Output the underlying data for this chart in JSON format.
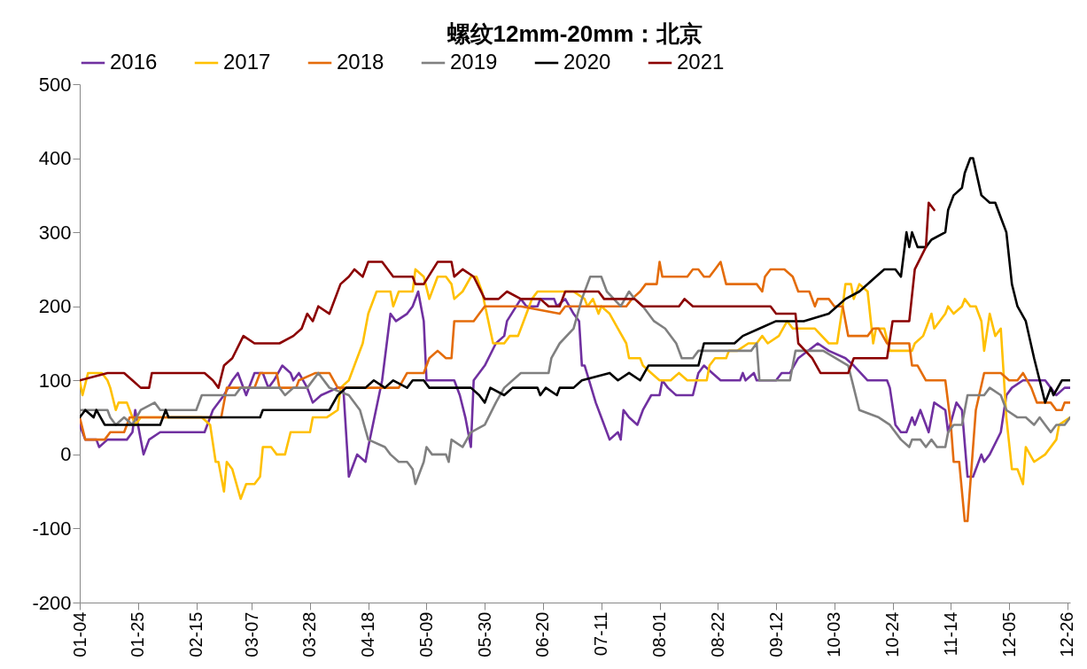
{
  "chart_data": {
    "type": "line",
    "title": "螺纹12mm-20mm：北京",
    "legend": "top",
    "ylim": [
      -200,
      500
    ],
    "yticks": [
      -200,
      -100,
      0,
      100,
      200,
      300,
      400,
      500
    ],
    "xlim": [
      "--01-04",
      "--12-27"
    ],
    "xticks": [
      {
        "value": "--01-04",
        "label": "01-04"
      },
      {
        "value": "--01-25",
        "label": "01-25"
      },
      {
        "value": "--02-15",
        "label": "02-15"
      },
      {
        "value": "--03-07",
        "label": "03-07"
      },
      {
        "value": "--03-28",
        "label": "03-28"
      },
      {
        "value": "--04-18",
        "label": "04-18"
      },
      {
        "value": "--05-09",
        "label": "05-09"
      },
      {
        "value": "--05-30",
        "label": "05-30"
      },
      {
        "value": "--06-20",
        "label": "06-20"
      },
      {
        "value": "--07-11",
        "label": "07-11"
      },
      {
        "value": "--08-01",
        "label": "08-01"
      },
      {
        "value": "--08-22",
        "label": "08-22"
      },
      {
        "value": "--09-12",
        "label": "09-12"
      },
      {
        "value": "--10-03",
        "label": "10-03"
      },
      {
        "value": "--10-24",
        "label": "10-24"
      },
      {
        "value": "--11-14",
        "label": "11-14"
      },
      {
        "value": "--12-05",
        "label": "12-05"
      },
      {
        "value": "--12-26",
        "label": "12-26"
      }
    ],
    "line_style": "solid",
    "marker": "none",
    "series": [
      {
        "name": "2016",
        "color": "#7030a0",
        "x": [
          "--01-04",
          "--01-06",
          "--01-10",
          "--01-11",
          "--01-14",
          "--01-21",
          "--01-23",
          "--01-24",
          "--01-26",
          "--01-27",
          "--01-29",
          "--02-02",
          "--02-18",
          "--02-21",
          "--02-25",
          "--02-28",
          "--03-02",
          "--03-05",
          "--03-08",
          "--03-11",
          "--03-13",
          "--03-15",
          "--03-18",
          "--03-21",
          "--03-22",
          "--03-24",
          "--03-27",
          "--03-29",
          "--04-01",
          "--04-07",
          "--04-09",
          "--04-11",
          "--04-13",
          "--04-14",
          "--04-17",
          "--04-18",
          "--04-23",
          "--04-26",
          "--04-28",
          "--05-02",
          "--05-04",
          "--05-06",
          "--05-08",
          "--05-09",
          "--05-19",
          "--05-21",
          "--05-23",
          "--05-25",
          "--05-26",
          "--05-30",
          "--06-03",
          "--06-06",
          "--06-07",
          "--06-12",
          "--06-14",
          "--06-18",
          "--06-19",
          "--06-24",
          "--06-25",
          "--06-28",
          "--07-01",
          "--07-03",
          "--07-04",
          "--07-05",
          "--07-09",
          "--07-11",
          "--07-14",
          "--07-17",
          "--07-18",
          "--07-19",
          "--07-21",
          "--07-24",
          "--07-26",
          "--07-29",
          "--08-01",
          "--08-02",
          "--08-04",
          "--08-07",
          "--08-13",
          "--08-15",
          "--08-17",
          "--08-20",
          "--08-23",
          "--08-30",
          "--08-31",
          "--09-01",
          "--09-04",
          "--09-05",
          "--09-12",
          "--09-14",
          "--09-17",
          "--09-20",
          "--09-27",
          "--10-01",
          "--10-07",
          "--10-10",
          "--10-15",
          "--10-22",
          "--10-23",
          "--10-25",
          "--10-27",
          "--10-29",
          "--10-31",
          "--11-01",
          "--11-03",
          "--11-06",
          "--11-08",
          "--11-12",
          "--11-13",
          "--11-16",
          "--11-18",
          "--11-20",
          "--11-22",
          "--11-25",
          "--11-26",
          "--11-28",
          "--12-02",
          "--12-04",
          "--12-06",
          "--12-10",
          "--12-18",
          "--12-20",
          "--12-22",
          "--12-25",
          "--12-27"
        ],
        "values": [
          40,
          20,
          20,
          10,
          20,
          20,
          30,
          60,
          20,
          0,
          20,
          30,
          30,
          60,
          80,
          100,
          110,
          80,
          110,
          110,
          90,
          100,
          120,
          110,
          100,
          110,
          90,
          70,
          80,
          90,
          90,
          -30,
          -10,
          0,
          -10,
          10,
          100,
          190,
          180,
          190,
          200,
          220,
          180,
          100,
          100,
          80,
          50,
          10,
          100,
          120,
          150,
          160,
          180,
          210,
          200,
          200,
          210,
          210,
          200,
          210,
          190,
          180,
          120,
          120,
          70,
          50,
          20,
          30,
          20,
          60,
          50,
          40,
          60,
          80,
          80,
          100,
          90,
          80,
          80,
          110,
          120,
          110,
          100,
          100,
          110,
          100,
          110,
          100,
          100,
          110,
          110,
          130,
          150,
          140,
          130,
          120,
          100,
          100,
          90,
          40,
          30,
          30,
          50,
          40,
          60,
          30,
          70,
          60,
          30,
          70,
          60,
          -30,
          -30,
          0,
          -10,
          0,
          30,
          80,
          90,
          100,
          100,
          90,
          80,
          90,
          90
        ]
      },
      {
        "name": "2017",
        "color": "#ffc000",
        "x": [
          "--01-04",
          "--01-05",
          "--01-07",
          "--01-12",
          "--01-14",
          "--01-15",
          "--01-17",
          "--01-18",
          "--01-21",
          "--01-23",
          "--01-24",
          "--01-26",
          "--02-17",
          "--02-20",
          "--02-22",
          "--02-23",
          "--02-25",
          "--02-26",
          "--02-28",
          "--03-03",
          "--03-05",
          "--03-08",
          "--03-10",
          "--03-11",
          "--03-14",
          "--03-16",
          "--03-19",
          "--03-21",
          "--03-28",
          "--03-29",
          "--04-03",
          "--04-07",
          "--04-08",
          "--04-11",
          "--04-13",
          "--04-16",
          "--04-18",
          "--04-21",
          "--04-26",
          "--04-27",
          "--04-29",
          "--05-04",
          "--05-05",
          "--05-08",
          "--05-10",
          "--05-13",
          "--05-16",
          "--05-18",
          "--05-19",
          "--05-22",
          "--05-25",
          "--05-27",
          "--05-29",
          "--06-02",
          "--06-06",
          "--06-08",
          "--06-11",
          "--06-13",
          "--06-15",
          "--06-16",
          "--06-18",
          "--07-01",
          "--07-05",
          "--07-06",
          "--07-08",
          "--07-10",
          "--07-11",
          "--07-14",
          "--07-17",
          "--07-20",
          "--07-21",
          "--07-25",
          "--07-26",
          "--07-29",
          "--08-01",
          "--08-05",
          "--08-08",
          "--08-11",
          "--08-18",
          "--08-19",
          "--08-21",
          "--08-25",
          "--08-26",
          "--08-29",
          "--09-02",
          "--09-05",
          "--09-07",
          "--09-09",
          "--09-13",
          "--09-16",
          "--09-18",
          "--09-26",
          "--10-01",
          "--10-04",
          "--10-06",
          "--10-07",
          "--10-09",
          "--10-10",
          "--10-12",
          "--10-15",
          "--10-17",
          "--10-18",
          "--10-21",
          "--10-23",
          "--10-31",
          "--11-01",
          "--11-04",
          "--11-06",
          "--11-07",
          "--11-08",
          "--11-12",
          "--11-13",
          "--11-15",
          "--11-18",
          "--11-19",
          "--11-21",
          "--11-23",
          "--11-25",
          "--11-26",
          "--11-28",
          "--11-30",
          "--12-02",
          "--12-04",
          "--12-06",
          "--12-08",
          "--12-10",
          "--12-11",
          "--12-14",
          "--12-18",
          "--12-22",
          "--12-23",
          "--12-27"
        ],
        "values": [
          100,
          80,
          110,
          110,
          100,
          90,
          60,
          70,
          70,
          50,
          40,
          50,
          50,
          40,
          -10,
          -10,
          -50,
          -10,
          -20,
          -60,
          -40,
          -40,
          -30,
          10,
          10,
          0,
          0,
          30,
          30,
          50,
          50,
          60,
          90,
          100,
          120,
          150,
          190,
          220,
          220,
          200,
          220,
          220,
          250,
          240,
          210,
          240,
          240,
          230,
          210,
          220,
          240,
          240,
          220,
          150,
          150,
          160,
          160,
          180,
          200,
          210,
          220,
          220,
          210,
          200,
          210,
          190,
          200,
          190,
          170,
          150,
          130,
          130,
          120,
          110,
          100,
          100,
          110,
          100,
          100,
          120,
          130,
          130,
          140,
          140,
          150,
          150,
          160,
          150,
          160,
          180,
          170,
          170,
          150,
          150,
          200,
          230,
          230,
          210,
          230,
          220,
          150,
          170,
          170,
          140,
          140,
          150,
          160,
          180,
          190,
          170,
          190,
          200,
          190,
          200,
          210,
          200,
          200,
          180,
          140,
          190,
          160,
          170,
          50,
          -20,
          -20,
          -40,
          10,
          -10,
          0,
          20,
          40,
          50
        ]
      },
      {
        "name": "2018",
        "color": "#e46c0a",
        "x": [
          "--01-04",
          "--01-06",
          "--01-13",
          "--01-15",
          "--01-20",
          "--01-22",
          "--02-24",
          "--02-26",
          "--03-08",
          "--03-10",
          "--03-16",
          "--03-17",
          "--03-23",
          "--03-24",
          "--03-30",
          "--04-04",
          "--04-07",
          "--04-29",
          "--05-02",
          "--05-08",
          "--05-10",
          "--05-13",
          "--05-16",
          "--05-18",
          "--05-19",
          "--05-26",
          "--05-28",
          "--05-30",
          "--06-12",
          "--06-26",
          "--06-28",
          "--07-20",
          "--07-22",
          "--07-25",
          "--07-27",
          "--07-31",
          "--08-01",
          "--08-02",
          "--08-11",
          "--08-13",
          "--08-15",
          "--08-17",
          "--08-19",
          "--08-21",
          "--08-23",
          "--08-25",
          "--09-05",
          "--09-07",
          "--09-08",
          "--09-10",
          "--09-15",
          "--09-18",
          "--09-20",
          "--09-24",
          "--09-26",
          "--09-27",
          "--10-01",
          "--10-03",
          "--10-06",
          "--10-08",
          "--10-15",
          "--10-17",
          "--10-19",
          "--10-22",
          "--10-30",
          "--10-31",
          "--11-02",
          "--11-05",
          "--11-12",
          "--11-14",
          "--11-15",
          "--11-17",
          "--11-19",
          "--11-20",
          "--11-23",
          "--11-26",
          "--12-02",
          "--12-05",
          "--12-08",
          "--12-10",
          "--12-13",
          "--12-15",
          "--12-20",
          "--12-22",
          "--12-24",
          "--12-25",
          "--12-27"
        ],
        "values": [
          50,
          20,
          20,
          30,
          30,
          50,
          50,
          90,
          90,
          110,
          110,
          90,
          90,
          100,
          110,
          110,
          90,
          90,
          110,
          110,
          130,
          140,
          130,
          130,
          180,
          180,
          190,
          200,
          200,
          190,
          200,
          200,
          210,
          220,
          230,
          230,
          260,
          240,
          240,
          250,
          250,
          240,
          240,
          250,
          260,
          230,
          230,
          220,
          240,
          250,
          250,
          240,
          220,
          220,
          200,
          210,
          210,
          200,
          200,
          160,
          160,
          170,
          170,
          150,
          150,
          120,
          120,
          100,
          100,
          40,
          -10,
          -10,
          -90,
          -90,
          60,
          110,
          110,
          100,
          100,
          110,
          90,
          70,
          70,
          60,
          60,
          70,
          70
        ]
      },
      {
        "name": "2019",
        "color": "#808080",
        "x": [
          "--01-04",
          "--01-14",
          "--01-15",
          "--01-17",
          "--01-20",
          "--01-23",
          "--01-26",
          "--01-31",
          "--02-02",
          "--02-15",
          "--02-17",
          "--03-01",
          "--03-03",
          "--03-17",
          "--03-19",
          "--03-22",
          "--03-27",
          "--03-31",
          "--04-04",
          "--04-11",
          "--04-15",
          "--04-18",
          "--04-24",
          "--04-26",
          "--04-29",
          "--05-02",
          "--05-04",
          "--05-05",
          "--05-08",
          "--05-09",
          "--05-11",
          "--05-16",
          "--05-17",
          "--05-18",
          "--05-22",
          "--05-25",
          "--05-30",
          "--06-03",
          "--06-06",
          "--06-12",
          "--06-22",
          "--06-23",
          "--06-26",
          "--07-01",
          "--07-04",
          "--07-07",
          "--07-11",
          "--07-13",
          "--07-18",
          "--07-21",
          "--07-23",
          "--07-26",
          "--07-30",
          "--08-03",
          "--08-07",
          "--08-09",
          "--08-13",
          "--08-15",
          "--09-03",
          "--09-05",
          "--09-06",
          "--09-17",
          "--09-19",
          "--09-29",
          "--10-08",
          "--10-10",
          "--10-12",
          "--10-19",
          "--10-23",
          "--10-27",
          "--10-30",
          "--10-31",
          "--11-03",
          "--11-05",
          "--11-07",
          "--11-09",
          "--11-12",
          "--11-13",
          "--11-15",
          "--11-18",
          "--11-20",
          "--11-26",
          "--11-28",
          "--12-02",
          "--12-04",
          "--12-08",
          "--12-11",
          "--12-14",
          "--12-16",
          "--12-18",
          "--12-20",
          "--12-22",
          "--12-25",
          "--12-27"
        ],
        "values": [
          60,
          60,
          50,
          40,
          50,
          40,
          60,
          70,
          60,
          60,
          80,
          80,
          90,
          90,
          80,
          90,
          90,
          110,
          90,
          80,
          60,
          20,
          10,
          0,
          -10,
          -10,
          -20,
          -40,
          -10,
          10,
          0,
          0,
          -10,
          20,
          10,
          30,
          40,
          70,
          90,
          110,
          110,
          130,
          150,
          170,
          210,
          240,
          240,
          220,
          200,
          220,
          210,
          200,
          180,
          170,
          150,
          130,
          130,
          140,
          140,
          150,
          100,
          100,
          140,
          140,
          120,
          90,
          60,
          50,
          40,
          20,
          10,
          20,
          20,
          10,
          20,
          10,
          10,
          30,
          40,
          40,
          80,
          80,
          90,
          80,
          60,
          50,
          50,
          40,
          50,
          40,
          30,
          40,
          40,
          50
        ]
      },
      {
        "name": "2020",
        "color": "#000000",
        "x": [
          "--01-04",
          "--01-06",
          "--01-09",
          "--01-10",
          "--01-13",
          "--02-02",
          "--02-04",
          "--02-05",
          "--03-10",
          "--03-11",
          "--04-04",
          "--04-07",
          "--04-10",
          "--04-17",
          "--04-20",
          "--04-24",
          "--04-27",
          "--05-02",
          "--05-04",
          "--05-08",
          "--05-10",
          "--05-25",
          "--05-28",
          "--05-30",
          "--06-01",
          "--06-06",
          "--06-09",
          "--06-18",
          "--06-19",
          "--06-21",
          "--06-25",
          "--06-26",
          "--07-01",
          "--07-04",
          "--07-14",
          "--07-17",
          "--07-21",
          "--07-25",
          "--07-28",
          "--08-15",
          "--08-17",
          "--08-28",
          "--08-31",
          "--09-06",
          "--09-12",
          "--09-22",
          "--10-01",
          "--10-07",
          "--10-12",
          "--10-18",
          "--10-21",
          "--10-25",
          "--10-27",
          "--10-29",
          "--10-30",
          "--10-31",
          "--11-02",
          "--11-05",
          "--11-07",
          "--11-12",
          "--11-13",
          "--11-15",
          "--11-18",
          "--11-19",
          "--11-21",
          "--11-22",
          "--11-25",
          "--11-28",
          "--11-30",
          "--12-02",
          "--12-04",
          "--12-06",
          "--12-08",
          "--12-11",
          "--12-14",
          "--12-16",
          "--12-18",
          "--12-20",
          "--12-21",
          "--12-24",
          "--12-27"
        ],
        "values": [
          50,
          60,
          50,
          60,
          40,
          40,
          60,
          50,
          50,
          60,
          60,
          80,
          90,
          90,
          100,
          90,
          100,
          90,
          100,
          100,
          90,
          90,
          80,
          70,
          90,
          80,
          90,
          90,
          80,
          90,
          80,
          90,
          90,
          100,
          110,
          100,
          110,
          100,
          120,
          120,
          150,
          150,
          160,
          170,
          180,
          180,
          190,
          210,
          220,
          240,
          250,
          250,
          240,
          300,
          280,
          300,
          280,
          280,
          290,
          300,
          330,
          350,
          360,
          380,
          400,
          400,
          350,
          340,
          340,
          320,
          300,
          230,
          200,
          180,
          130,
          100,
          70,
          90,
          80,
          100,
          100
        ]
      },
      {
        "name": "2021",
        "color": "#8b0000",
        "x": [
          "--01-04",
          "--01-14",
          "--01-20",
          "--01-23",
          "--01-26",
          "--01-29",
          "--01-30",
          "--02-18",
          "--02-21",
          "--02-23",
          "--02-25",
          "--02-28",
          "--03-04",
          "--03-08",
          "--03-17",
          "--03-22",
          "--03-25",
          "--03-27",
          "--03-29",
          "--03-31",
          "--04-04",
          "--04-08",
          "--04-11",
          "--04-13",
          "--04-16",
          "--04-18",
          "--04-23",
          "--04-27",
          "--05-04",
          "--05-05",
          "--05-08",
          "--05-13",
          "--05-18",
          "--05-19",
          "--05-22",
          "--05-26",
          "--05-30",
          "--06-04",
          "--06-07",
          "--06-12",
          "--06-19",
          "--06-22",
          "--06-26",
          "--06-28",
          "--07-10",
          "--07-12",
          "--07-23",
          "--07-26",
          "--08-08",
          "--08-10",
          "--08-13",
          "--09-10",
          "--09-12",
          "--09-19",
          "--09-20",
          "--09-25",
          "--09-28",
          "--10-08",
          "--10-10",
          "--10-22",
          "--10-24",
          "--10-30",
          "--11-01",
          "--11-05",
          "--11-06",
          "--11-08"
        ],
        "values": [
          100,
          110,
          110,
          100,
          90,
          90,
          110,
          110,
          100,
          90,
          120,
          130,
          160,
          150,
          150,
          160,
          170,
          190,
          180,
          200,
          190,
          230,
          240,
          250,
          240,
          260,
          260,
          240,
          240,
          230,
          230,
          260,
          260,
          240,
          250,
          240,
          210,
          210,
          220,
          210,
          210,
          200,
          200,
          220,
          220,
          210,
          210,
          200,
          200,
          210,
          200,
          200,
          190,
          190,
          150,
          130,
          110,
          110,
          130,
          130,
          180,
          180,
          250,
          280,
          340,
          330
        ]
      }
    ]
  }
}
